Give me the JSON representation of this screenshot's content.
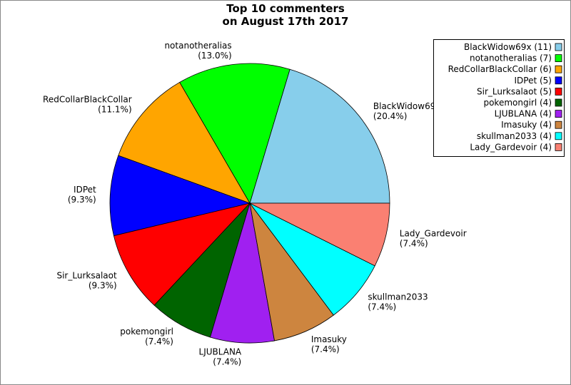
{
  "chart_data": {
    "type": "pie",
    "title": [
      "Top 10 commenters",
      "on August 17th 2017"
    ],
    "categories": [
      "BlackWidow69x",
      "notanotheralias",
      "RedCollarBlackCollar",
      "IDPet",
      "Sir_Lurksalaot",
      "pokemongirl",
      "LJUBLANA",
      "Imasuky",
      "skullman2033",
      "Lady_Gardevoir"
    ],
    "values": [
      20.4,
      13.0,
      11.1,
      9.3,
      9.3,
      7.4,
      7.4,
      7.4,
      7.4,
      7.4
    ],
    "value_labels": [
      "(20.4%)",
      "(13.0%)",
      "(11.1%)",
      "(9.3%)",
      "(9.3%)",
      "(7.4%)",
      "(7.4%)",
      "(7.4%)",
      "(7.4%)",
      "(7.4%)"
    ],
    "colors": [
      "#87ceeb",
      "#00ff00",
      "#ffa500",
      "#0000ff",
      "#ff0000",
      "#006400",
      "#a020f0",
      "#cd853f",
      "#00ffff",
      "#fa8072"
    ],
    "legend_labels": [
      "BlackWidow69x (11)",
      "notanotheralias (7)",
      "RedCollarBlackCollar (6)",
      "IDPet (5)",
      "Sir_Lurksalaot (5)",
      "pokemongirl (4)",
      "LJUBLANA (4)",
      "Imasuky (4)",
      "skullman2033 (4)",
      "Lady_Gardevoir (4)"
    ],
    "legend_position": "upper right"
  }
}
